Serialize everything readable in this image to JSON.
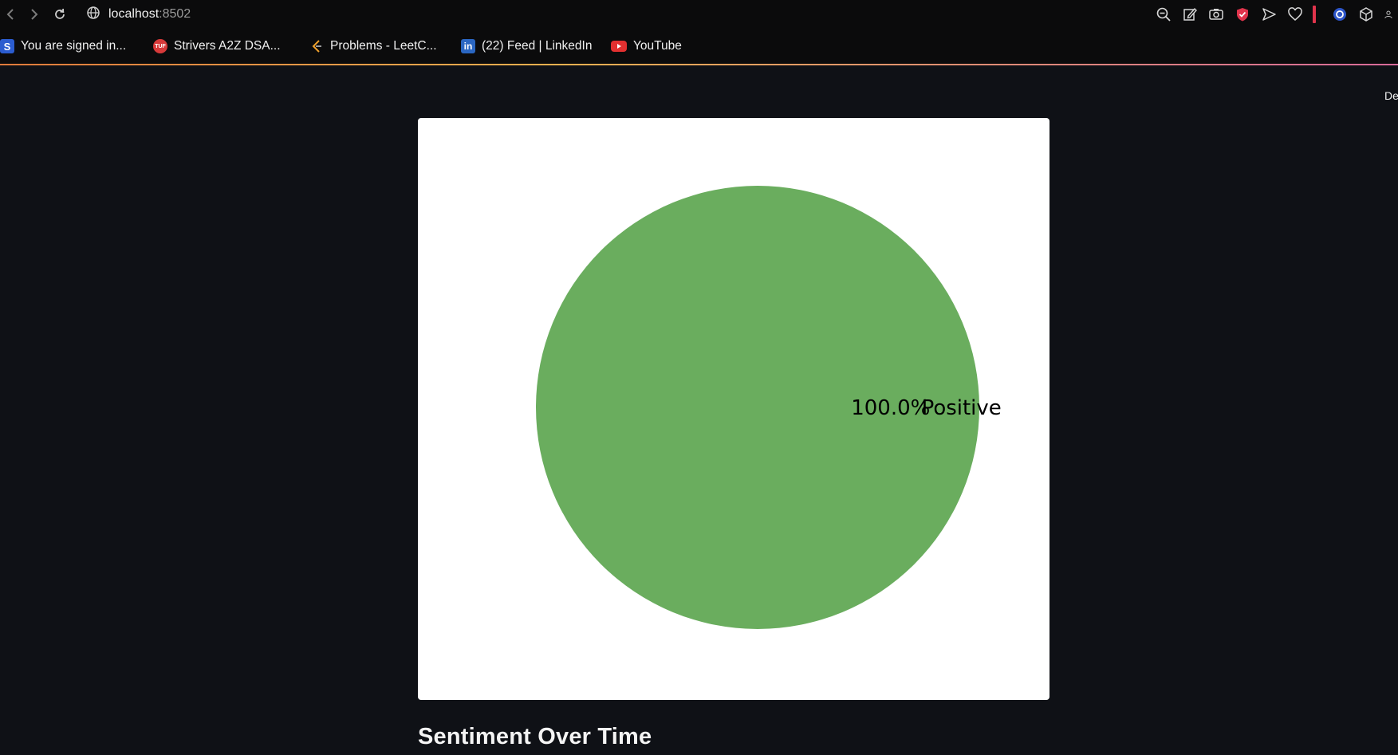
{
  "browser": {
    "url_host": "localhost",
    "url_port": ":8502",
    "nav": {
      "back_icon": "back-icon",
      "forward_icon": "forward-icon",
      "reload_icon": "reload-icon"
    },
    "toolbar_icons": [
      "zoom-out-icon",
      "edit-icon",
      "camera-icon",
      "shield-icon",
      "send-icon",
      "heart-icon",
      "extension-icon",
      "cube-icon",
      "profile-icon"
    ],
    "accent": "#e0344c"
  },
  "bookmarks": [
    {
      "label": "You are signed in...",
      "icon": "s-icon",
      "color": "#2b5ccf"
    },
    {
      "label": "Strivers A2Z DSA...",
      "icon": "tuf-icon",
      "color": "#d83a3a"
    },
    {
      "label": "Problems - LeetC...",
      "icon": "leetcode-icon",
      "color": "#f0a12b"
    },
    {
      "label": "(22) Feed | LinkedIn",
      "icon": "linkedin-icon",
      "color": "#2a66c2"
    },
    {
      "label": "YouTube",
      "icon": "youtube-icon",
      "color": "#e33030"
    }
  ],
  "corner_text": "De",
  "chart_data": {
    "type": "pie",
    "slices": [
      {
        "label": "Positive",
        "value": 100.0,
        "pct_label": "100.0%",
        "color": "#6aad5e"
      }
    ]
  },
  "section": {
    "title": "Sentiment Over Time"
  }
}
